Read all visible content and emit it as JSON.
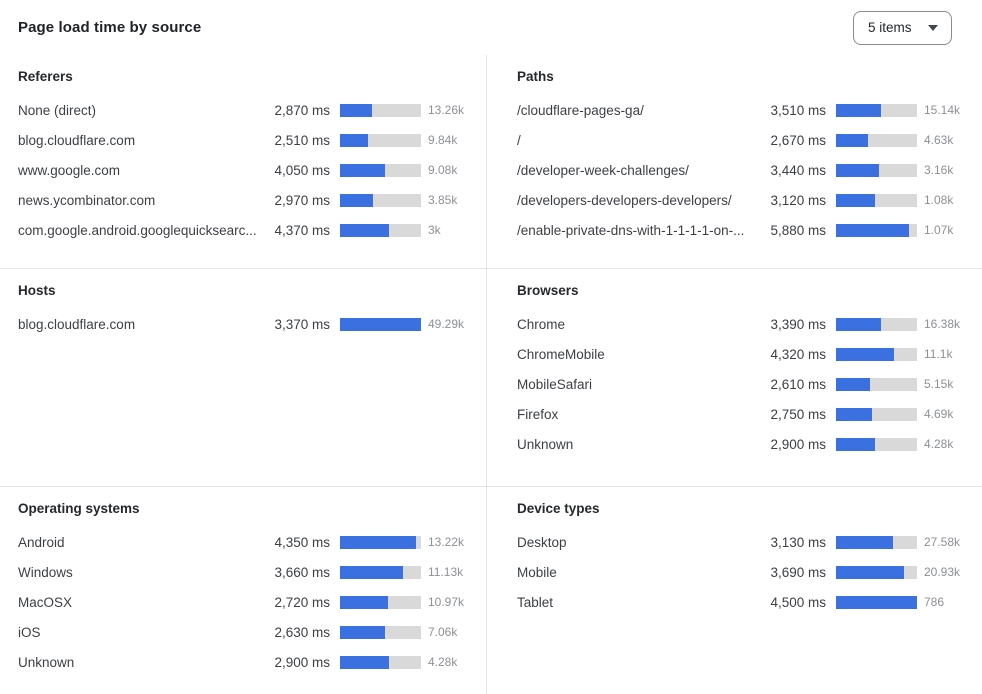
{
  "header": {
    "title": "Page load time by source",
    "items_select": {
      "value": "5 items",
      "icon": "chevron-down-icon"
    }
  },
  "colors": {
    "bar_fill": "#3b70e0",
    "bar_track": "#d9d9d9",
    "divider": "#e4e4e5",
    "count_text": "#8d9095"
  },
  "panels": [
    {
      "id": "referers",
      "title": "Referers",
      "rows": [
        {
          "label": "None (direct)",
          "time": "2,870 ms",
          "count": "13.26k",
          "bar_pct": 40
        },
        {
          "label": "blog.cloudflare.com",
          "time": "2,510 ms",
          "count": "9.84k",
          "bar_pct": 35
        },
        {
          "label": "www.google.com",
          "time": "4,050 ms",
          "count": "9.08k",
          "bar_pct": 56
        },
        {
          "label": "news.ycombinator.com",
          "time": "2,970 ms",
          "count": "3.85k",
          "bar_pct": 41
        },
        {
          "label": "com.google.android.googlequicksearc...",
          "time": "4,370 ms",
          "count": "3k",
          "bar_pct": 61
        }
      ]
    },
    {
      "id": "paths",
      "title": "Paths",
      "rows": [
        {
          "label": "/cloudflare-pages-ga/",
          "time": "3,510 ms",
          "count": "15.14k",
          "bar_pct": 55
        },
        {
          "label": "/",
          "time": "2,670 ms",
          "count": "4.63k",
          "bar_pct": 40
        },
        {
          "label": "/developer-week-challenges/",
          "time": "3,440 ms",
          "count": "3.16k",
          "bar_pct": 53
        },
        {
          "label": "/developers-developers-developers/",
          "time": "3,120 ms",
          "count": "1.08k",
          "bar_pct": 48
        },
        {
          "label": "/enable-private-dns-with-1-1-1-1-on-...",
          "time": "5,880 ms",
          "count": "1.07k",
          "bar_pct": 90
        }
      ]
    },
    {
      "id": "hosts",
      "title": "Hosts",
      "rows": [
        {
          "label": "blog.cloudflare.com",
          "time": "3,370 ms",
          "count": "49.29k",
          "bar_pct": 100
        }
      ]
    },
    {
      "id": "browsers",
      "title": "Browsers",
      "rows": [
        {
          "label": "Chrome",
          "time": "3,390 ms",
          "count": "16.38k",
          "bar_pct": 56
        },
        {
          "label": "ChromeMobile",
          "time": "4,320 ms",
          "count": "11.1k",
          "bar_pct": 71
        },
        {
          "label": "MobileSafari",
          "time": "2,610 ms",
          "count": "5.15k",
          "bar_pct": 42
        },
        {
          "label": "Firefox",
          "time": "2,750 ms",
          "count": "4.69k",
          "bar_pct": 45
        },
        {
          "label": "Unknown",
          "time": "2,900 ms",
          "count": "4.28k",
          "bar_pct": 48
        }
      ]
    },
    {
      "id": "operating-systems",
      "title": "Operating systems",
      "rows": [
        {
          "label": "Android",
          "time": "4,350 ms",
          "count": "13.22k",
          "bar_pct": 94
        },
        {
          "label": "Windows",
          "time": "3,660 ms",
          "count": "11.13k",
          "bar_pct": 78
        },
        {
          "label": "MacOSX",
          "time": "2,720 ms",
          "count": "10.97k",
          "bar_pct": 59
        },
        {
          "label": "iOS",
          "time": "2,630 ms",
          "count": "7.06k",
          "bar_pct": 56
        },
        {
          "label": "Unknown",
          "time": "2,900 ms",
          "count": "4.28k",
          "bar_pct": 61
        }
      ]
    },
    {
      "id": "device-types",
      "title": "Device types",
      "rows": [
        {
          "label": "Desktop",
          "time": "3,130 ms",
          "count": "27.58k",
          "bar_pct": 70
        },
        {
          "label": "Mobile",
          "time": "3,690 ms",
          "count": "20.93k",
          "bar_pct": 84
        },
        {
          "label": "Tablet",
          "time": "4,500 ms",
          "count": "786",
          "bar_pct": 100
        }
      ]
    }
  ],
  "chart_data": [
    {
      "type": "bar",
      "orientation": "horizontal",
      "title": "Referers",
      "unit": "ms",
      "categories": [
        "None (direct)",
        "blog.cloudflare.com",
        "www.google.com",
        "news.ycombinator.com",
        "com.google.android.googlequicksearc..."
      ],
      "values_ms": [
        2870,
        2510,
        4050,
        2970,
        4370
      ],
      "counts": [
        "13.26k",
        "9.84k",
        "9.08k",
        "3.85k",
        "3k"
      ]
    },
    {
      "type": "bar",
      "orientation": "horizontal",
      "title": "Paths",
      "unit": "ms",
      "categories": [
        "/cloudflare-pages-ga/",
        "/",
        "/developer-week-challenges/",
        "/developers-developers-developers/",
        "/enable-private-dns-with-1-1-1-1-on-..."
      ],
      "values_ms": [
        3510,
        2670,
        3440,
        3120,
        5880
      ],
      "counts": [
        "15.14k",
        "4.63k",
        "3.16k",
        "1.08k",
        "1.07k"
      ]
    },
    {
      "type": "bar",
      "orientation": "horizontal",
      "title": "Hosts",
      "unit": "ms",
      "categories": [
        "blog.cloudflare.com"
      ],
      "values_ms": [
        3370
      ],
      "counts": [
        "49.29k"
      ]
    },
    {
      "type": "bar",
      "orientation": "horizontal",
      "title": "Browsers",
      "unit": "ms",
      "categories": [
        "Chrome",
        "ChromeMobile",
        "MobileSafari",
        "Firefox",
        "Unknown"
      ],
      "values_ms": [
        3390,
        4320,
        2610,
        2750,
        2900
      ],
      "counts": [
        "16.38k",
        "11.1k",
        "5.15k",
        "4.69k",
        "4.28k"
      ]
    },
    {
      "type": "bar",
      "orientation": "horizontal",
      "title": "Operating systems",
      "unit": "ms",
      "categories": [
        "Android",
        "Windows",
        "MacOSX",
        "iOS",
        "Unknown"
      ],
      "values_ms": [
        4350,
        3660,
        2720,
        2630,
        2900
      ],
      "counts": [
        "13.22k",
        "11.13k",
        "10.97k",
        "7.06k",
        "4.28k"
      ]
    },
    {
      "type": "bar",
      "orientation": "horizontal",
      "title": "Device types",
      "unit": "ms",
      "categories": [
        "Desktop",
        "Mobile",
        "Tablet"
      ],
      "values_ms": [
        3130,
        3690,
        4500
      ],
      "counts": [
        "27.58k",
        "20.93k",
        "786"
      ]
    }
  ]
}
